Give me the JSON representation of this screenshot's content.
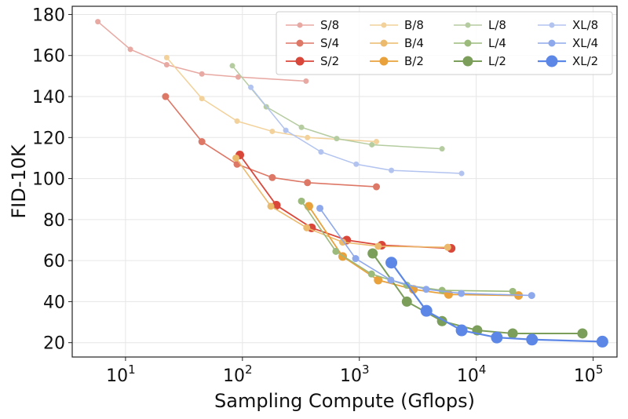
{
  "chart_data": {
    "type": "line",
    "xlabel": "Sampling Compute (Gflops)",
    "ylabel": "FID-10K",
    "xscale": "log",
    "xlim": [
      3.5,
      160000
    ],
    "ylim": [
      13,
      184
    ],
    "grid": true,
    "legend_position": "top-right",
    "legend_columns": 4,
    "x_ticks": [
      {
        "value": 10,
        "base": "10",
        "exp": "1"
      },
      {
        "value": 100,
        "base": "10",
        "exp": "2"
      },
      {
        "value": 1000,
        "base": "10",
        "exp": "3"
      },
      {
        "value": 10000,
        "base": "10",
        "exp": "4"
      },
      {
        "value": 100000,
        "base": "10",
        "exp": "5"
      }
    ],
    "y_ticks": [
      {
        "value": 20,
        "label": "20"
      },
      {
        "value": 40,
        "label": "40"
      },
      {
        "value": 60,
        "label": "60"
      },
      {
        "value": 80,
        "label": "80"
      },
      {
        "value": 100,
        "label": "100"
      },
      {
        "value": 120,
        "label": "120"
      },
      {
        "value": 140,
        "label": "140"
      },
      {
        "value": 160,
        "label": "160"
      },
      {
        "value": 180,
        "label": "180"
      }
    ],
    "series": [
      {
        "name": "S/8",
        "color": "#e8a9a3",
        "marker_r": 3.5,
        "line_w": 1.5,
        "points": [
          [
            5.8,
            176.5
          ],
          [
            11,
            163
          ],
          [
            22.5,
            155.5
          ],
          [
            45,
            151
          ],
          [
            92,
            149.5
          ],
          [
            350,
            147.5
          ]
        ]
      },
      {
        "name": "S/4",
        "color": "#dd7766",
        "marker_r": 4.5,
        "line_w": 1.6,
        "points": [
          [
            22,
            140
          ],
          [
            45,
            118
          ],
          [
            90,
            107
          ],
          [
            180,
            100.5
          ],
          [
            360,
            98
          ],
          [
            1400,
            96
          ]
        ]
      },
      {
        "name": "S/2",
        "color": "#d9473b",
        "marker_r": 5.5,
        "line_w": 1.8,
        "points": [
          [
            95,
            111.5
          ],
          [
            195,
            87
          ],
          [
            390,
            76
          ],
          [
            780,
            70
          ],
          [
            1550,
            67.5
          ],
          [
            6100,
            66
          ]
        ]
      },
      {
        "name": "B/8",
        "color": "#f2d29a",
        "marker_r": 3.5,
        "line_w": 1.5,
        "points": [
          [
            22.5,
            159
          ],
          [
            45,
            139
          ],
          [
            90,
            128
          ],
          [
            180,
            123
          ],
          [
            360,
            120
          ],
          [
            1400,
            118
          ]
        ]
      },
      {
        "name": "B/4",
        "color": "#ecba6c",
        "marker_r": 4.5,
        "line_w": 1.6,
        "points": [
          [
            88,
            110
          ],
          [
            175,
            86.5
          ],
          [
            355,
            76
          ],
          [
            720,
            69
          ],
          [
            1450,
            67
          ],
          [
            5700,
            66.5
          ]
        ]
      },
      {
        "name": "B/2",
        "color": "#e9a23b",
        "marker_r": 5.5,
        "line_w": 1.8,
        "points": [
          [
            370,
            86.5
          ],
          [
            720,
            62
          ],
          [
            1450,
            50.5
          ],
          [
            2900,
            46
          ],
          [
            5800,
            43.5
          ],
          [
            23000,
            43
          ]
        ]
      },
      {
        "name": "L/8",
        "color": "#b5cca0",
        "marker_r": 3.5,
        "line_w": 1.5,
        "points": [
          [
            82,
            155
          ],
          [
            160,
            135
          ],
          [
            320,
            125
          ],
          [
            640,
            119.5
          ],
          [
            1280,
            116.5
          ],
          [
            5100,
            114.5
          ]
        ]
      },
      {
        "name": "L/4",
        "color": "#9bba7c",
        "marker_r": 4.5,
        "line_w": 1.6,
        "points": [
          [
            320,
            89
          ],
          [
            630,
            64.5
          ],
          [
            1270,
            53.5
          ],
          [
            2550,
            48
          ],
          [
            5100,
            45.5
          ],
          [
            20500,
            45
          ]
        ]
      },
      {
        "name": "L/2",
        "color": "#7c9e5b",
        "marker_r": 6.5,
        "line_w": 2.0,
        "points": [
          [
            1300,
            63.5
          ],
          [
            2550,
            40
          ],
          [
            5100,
            30.5
          ],
          [
            10200,
            26
          ],
          [
            20500,
            24.5
          ],
          [
            81000,
            24.5
          ]
        ]
      },
      {
        "name": "XL/8",
        "color": "#b2c3f0",
        "marker_r": 3.5,
        "line_w": 1.5,
        "points": [
          [
            118,
            144.5
          ],
          [
            235,
            123.5
          ],
          [
            470,
            113
          ],
          [
            940,
            107
          ],
          [
            1880,
            104
          ],
          [
            7500,
            102.5
          ]
        ]
      },
      {
        "name": "XL/4",
        "color": "#8ea8ec",
        "marker_r": 4.5,
        "line_w": 1.6,
        "points": [
          [
            460,
            85.5
          ],
          [
            930,
            61
          ],
          [
            1860,
            50.5
          ],
          [
            3730,
            46
          ],
          [
            7450,
            44
          ],
          [
            29800,
            43
          ]
        ]
      },
      {
        "name": "XL/2",
        "color": "#5d87e6",
        "marker_r": 7.5,
        "line_w": 2.2,
        "points": [
          [
            1880,
            59
          ],
          [
            3750,
            35.5
          ],
          [
            7500,
            26
          ],
          [
            15000,
            22.5
          ],
          [
            30000,
            21.5
          ],
          [
            120000,
            20.5
          ]
        ]
      }
    ]
  }
}
